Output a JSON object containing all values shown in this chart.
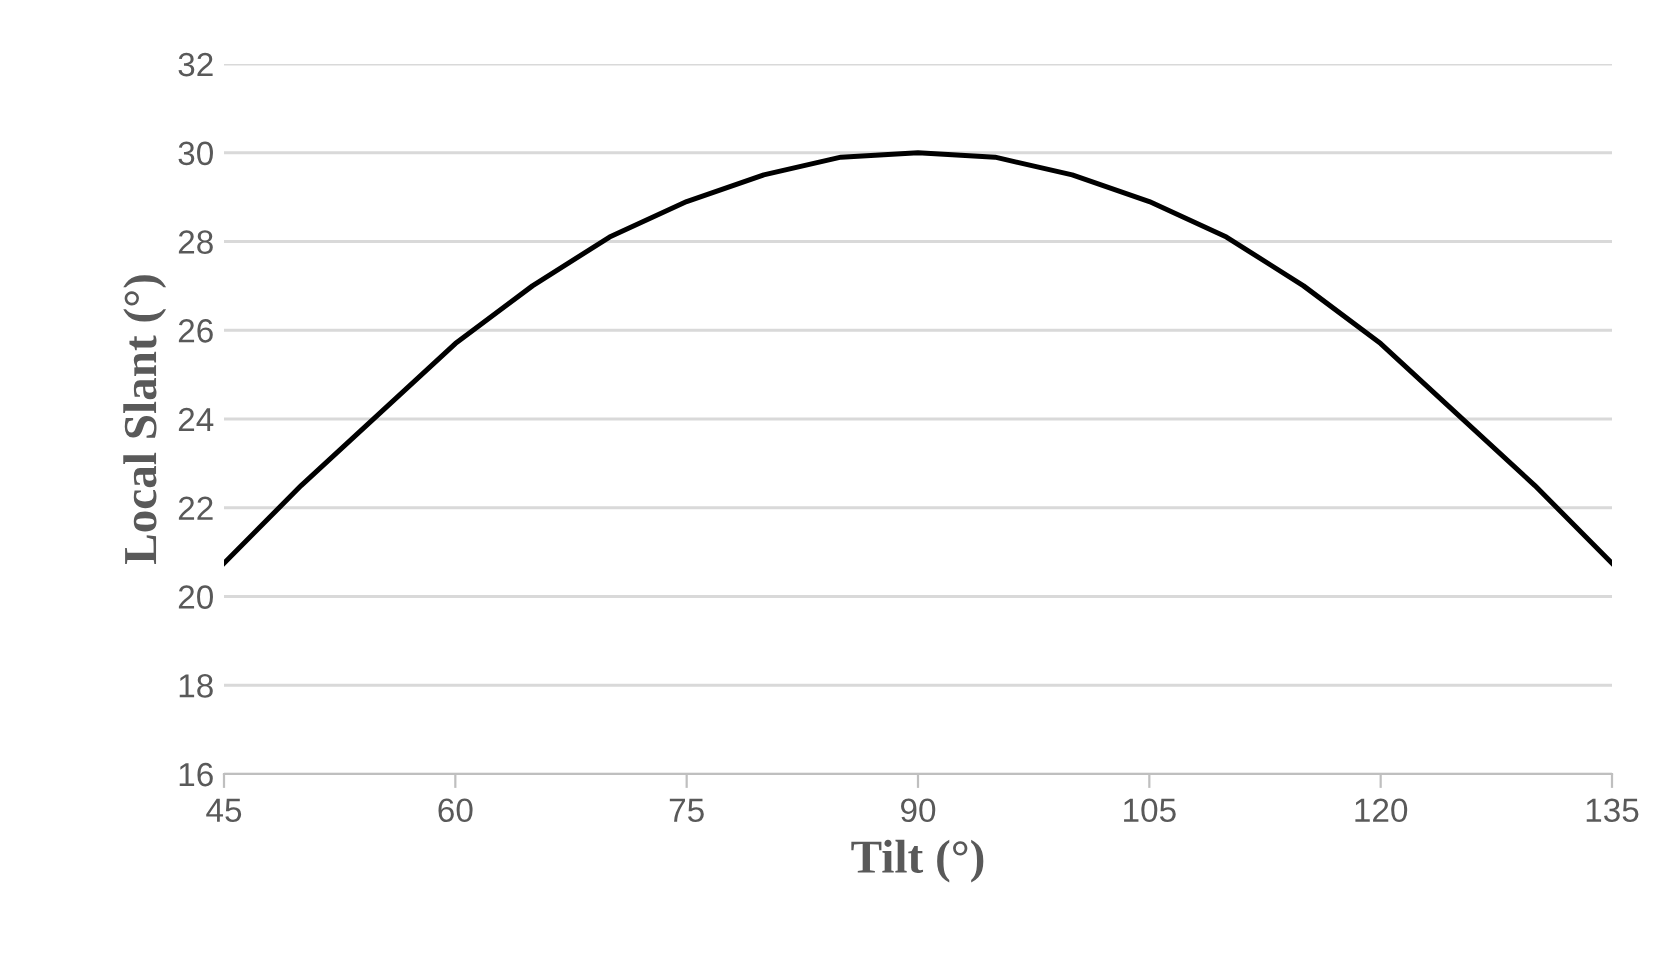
{
  "chart_data": {
    "type": "line",
    "xlabel": "Tilt (°)",
    "ylabel": "Local Slant (°)",
    "x": [
      45,
      50,
      55,
      60,
      65,
      70,
      75,
      80,
      85,
      90,
      95,
      100,
      105,
      110,
      115,
      120,
      125,
      130,
      135
    ],
    "series": [
      {
        "color": "#000000",
        "values": [
          20.75,
          22.5,
          24.1,
          25.7,
          27.0,
          28.1,
          28.9,
          29.5,
          29.9,
          30.0,
          29.9,
          29.5,
          28.9,
          28.1,
          27.0,
          25.7,
          24.1,
          22.5,
          20.75
        ]
      }
    ],
    "xlim": [
      45,
      135
    ],
    "xticks": [
      45,
      60,
      75,
      90,
      105,
      120,
      135
    ],
    "ylim": [
      16,
      32
    ],
    "yticks": [
      16,
      18,
      20,
      22,
      24,
      26,
      28,
      30,
      32
    ],
    "grid": "y",
    "legend": false,
    "marker": "none",
    "line_style": "solid"
  }
}
